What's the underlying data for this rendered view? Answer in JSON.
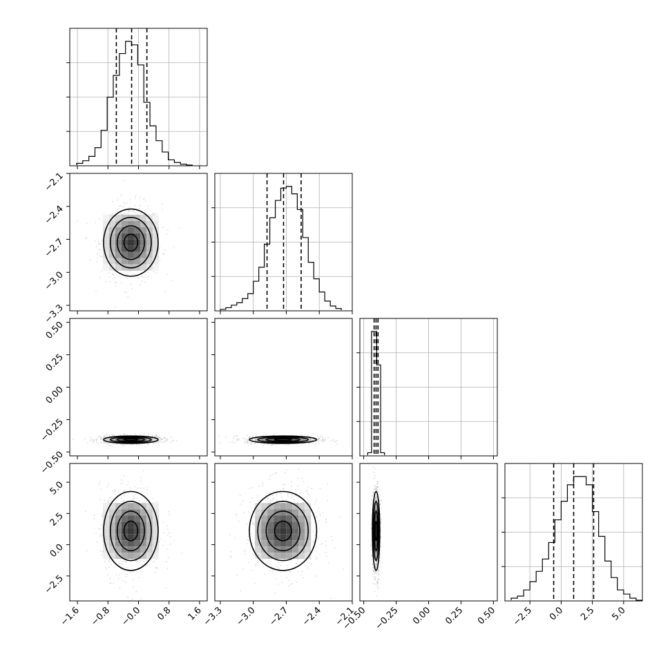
{
  "chart_data": {
    "type": "corner",
    "title": "",
    "params": [
      {
        "id": "p0",
        "xlabel": "",
        "range": [
          -1.8,
          1.8
        ],
        "ticks": [
          -1.6,
          -0.8,
          0.0,
          0.8,
          1.6
        ],
        "tick_labels": [
          "−1.6",
          "−0.8",
          "−0.0",
          "0.8",
          "1.6"
        ],
        "quantiles": [
          -0.58,
          -0.18,
          0.22
        ],
        "hist_edges": [
          -1.62,
          -1.46,
          -1.3,
          -1.14,
          -0.98,
          -0.82,
          -0.66,
          -0.5,
          -0.34,
          -0.18,
          -0.02,
          0.14,
          0.3,
          0.46,
          0.62,
          0.78,
          0.94,
          1.1,
          1.26,
          1.42
        ],
        "hist_counts": [
          2,
          5,
          10,
          20,
          40,
          78,
          103,
          128,
          142,
          138,
          115,
          72,
          45,
          28,
          15,
          6,
          3,
          1,
          0
        ]
      },
      {
        "id": "p1",
        "xlabel": "",
        "range": [
          -3.35,
          -2.1
        ],
        "ticks": [
          -3.3,
          -3.0,
          -2.7,
          -2.4,
          -2.1
        ],
        "tick_labels": [
          "−3.3",
          "−3.0",
          "−2.7",
          "−2.4",
          "−2.1"
        ],
        "quantiles": [
          -2.875,
          -2.725,
          -2.565
        ],
        "hist_edges": [
          -3.3,
          -3.25,
          -3.2,
          -3.15,
          -3.1,
          -3.05,
          -3.0,
          -2.95,
          -2.9,
          -2.85,
          -2.8,
          -2.75,
          -2.7,
          -2.65,
          -2.6,
          -2.55,
          -2.5,
          -2.45,
          -2.4,
          -2.35,
          -2.3,
          -2.25,
          -2.2
        ],
        "hist_counts": [
          1,
          3,
          6,
          9,
          14,
          20,
          35,
          52,
          80,
          112,
          133,
          148,
          150,
          141,
          122,
          88,
          58,
          38,
          22,
          11,
          5,
          2
        ]
      },
      {
        "id": "p2",
        "xlabel": "",
        "range": [
          -0.53,
          0.53
        ],
        "ticks": [
          -0.5,
          -0.25,
          0.0,
          0.25,
          0.5
        ],
        "tick_labels": [
          "−0.50",
          "−0.25",
          "0.00",
          "0.25",
          "0.50"
        ],
        "quantiles": [
          -0.42,
          -0.405,
          -0.39
        ],
        "hist_edges": [
          -0.47,
          -0.44,
          -0.42,
          -0.4,
          -0.37,
          -0.34
        ],
        "hist_counts": [
          2,
          100,
          100,
          73,
          2
        ]
      },
      {
        "id": "p3",
        "xlabel": "",
        "range": [
          -4.5,
          6.5
        ],
        "ticks": [
          -2.5,
          0.0,
          2.5,
          5.0
        ],
        "tick_labels": [
          "−2.5",
          "0.0",
          "2.5",
          "5.0"
        ],
        "quantiles": [
          -0.6,
          1.0,
          2.6
        ],
        "hist_edges": [
          -4.0,
          -3.5,
          -3.0,
          -2.5,
          -2.0,
          -1.5,
          -1.0,
          -0.5,
          0.0,
          0.5,
          1.0,
          1.5,
          2.0,
          2.5,
          3.0,
          3.5,
          4.0,
          4.5,
          5.0,
          5.5,
          6.0,
          6.5
        ],
        "hist_counts": [
          1,
          2,
          5,
          9,
          14,
          20,
          28,
          39,
          48,
          56,
          60,
          60,
          56,
          43,
          31,
          19,
          11,
          5,
          3,
          1,
          0
        ]
      }
    ],
    "pairs": [
      {
        "x": "p0",
        "y": "p1",
        "center": [
          -0.2,
          -2.73
        ],
        "sigma": [
          0.35,
          0.15
        ],
        "cloud_half": [
          1.1,
          0.45
        ]
      },
      {
        "x": "p0",
        "y": "p2",
        "center": [
          -0.2,
          -0.405
        ],
        "sigma": [
          0.35,
          0.014
        ],
        "cloud_half": [
          1.1,
          0.05
        ]
      },
      {
        "x": "p1",
        "y": "p2",
        "center": [
          -2.73,
          -0.405
        ],
        "sigma": [
          0.15,
          0.014
        ],
        "cloud_half": [
          0.45,
          0.05
        ]
      },
      {
        "x": "p0",
        "y": "p3",
        "center": [
          -0.2,
          1.1
        ],
        "sigma": [
          0.35,
          1.55
        ],
        "cloud_half": [
          1.1,
          4.6
        ]
      },
      {
        "x": "p1",
        "y": "p3",
        "center": [
          -2.73,
          1.1
        ],
        "sigma": [
          0.15,
          1.55
        ],
        "cloud_half": [
          0.45,
          4.6
        ]
      },
      {
        "x": "p2",
        "y": "p3",
        "center": [
          -0.405,
          1.1
        ],
        "sigma": [
          0.014,
          1.55
        ],
        "cloud_half": [
          0.05,
          4.6
        ]
      }
    ],
    "contour_levels_sigma": [
      0.5,
      1.0,
      1.5,
      2.0
    ]
  }
}
